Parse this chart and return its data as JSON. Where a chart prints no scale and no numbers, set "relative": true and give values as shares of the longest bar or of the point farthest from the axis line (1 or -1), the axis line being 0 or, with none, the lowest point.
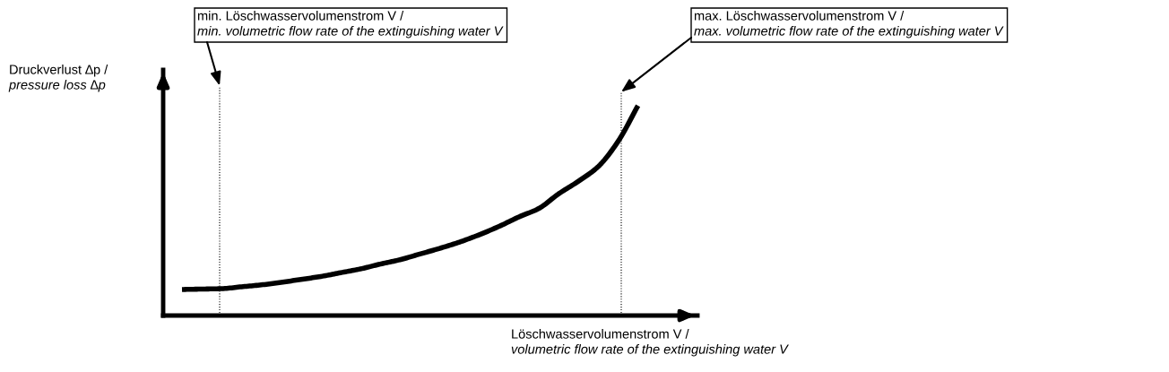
{
  "chart_data": {
    "type": "line",
    "relative": true,
    "tick_labels": false,
    "line_style": "solid",
    "xlabel": "Löschwasservolumenstrom V /\nvolumetric flow rate of the extinguishing water V",
    "categories": [
      null,
      null,
      null,
      null,
      null,
      null,
      null,
      null,
      null,
      null,
      null,
      null,
      null,
      null,
      null,
      null,
      null,
      null,
      null,
      null,
      null,
      null,
      null,
      null
    ],
    "series": [
      {
        "color": "#000000",
        "values": [
          0.124,
          0.126,
          0.128,
          0.137,
          0.146,
          0.158,
          0.172,
          0.186,
          0.204,
          0.222,
          0.245,
          0.266,
          0.293,
          0.32,
          0.35,
          0.385,
          0.425,
          0.47,
          0.51,
          0.58,
          0.64,
          0.71,
          0.83,
          1.0
        ]
      }
    ],
    "annotations": [
      "Druckverlust ∆p /\npressure loss ∆p",
      "min. Löschwasservolumenstrom V /\nmin. volumetric flow rate of the extinguishing water V",
      "max. Löschwasservolumenstrom V /\nmax. volumetric flow rate of the extinguishing water V"
    ]
  }
}
